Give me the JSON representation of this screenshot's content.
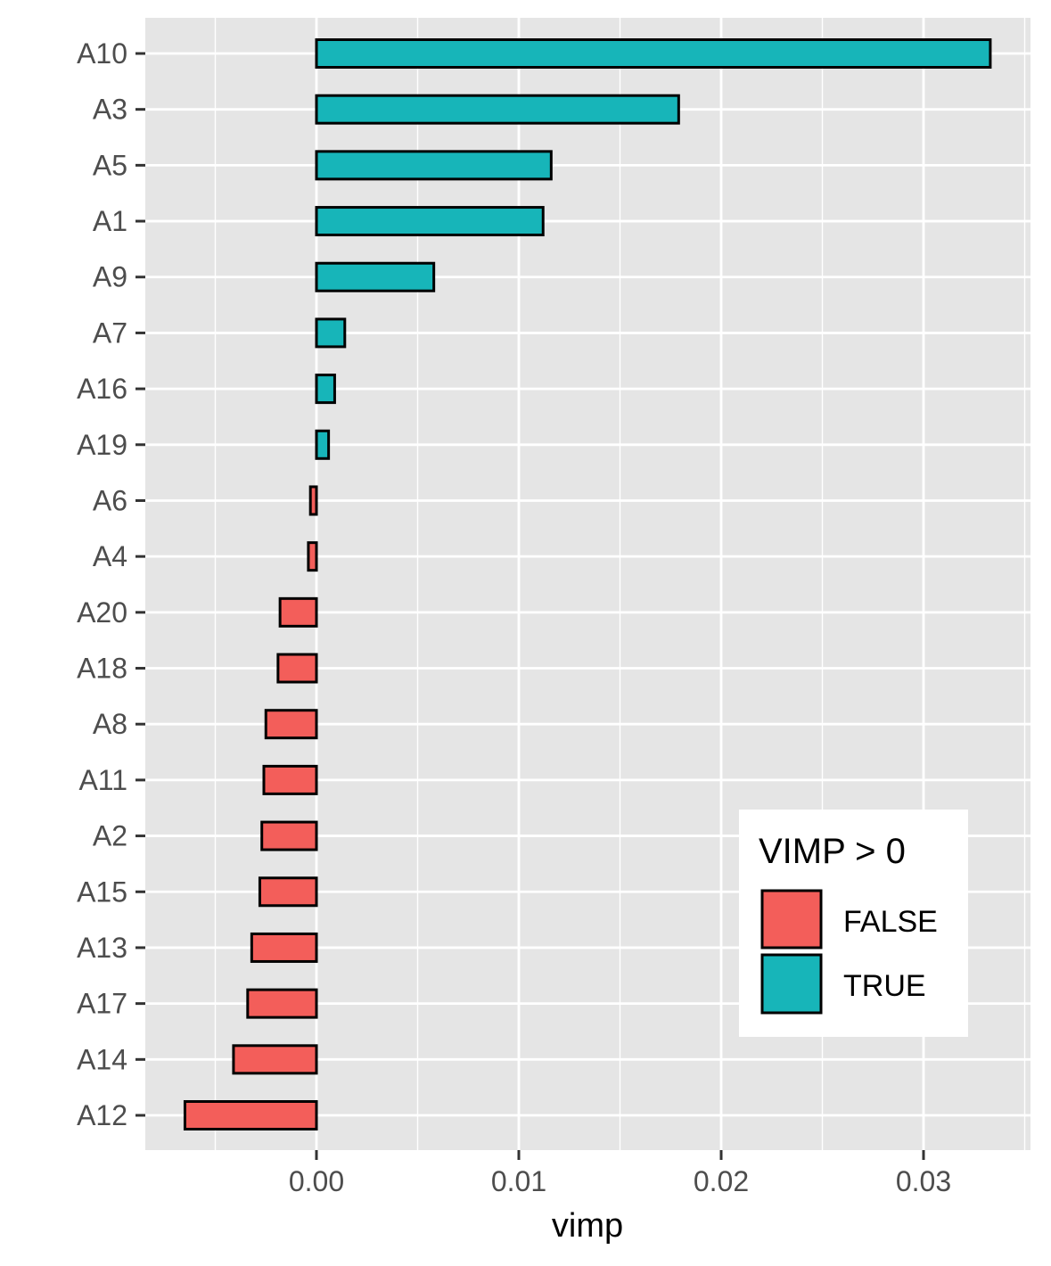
{
  "chart_data": {
    "type": "bar",
    "orientation": "horizontal",
    "categories": [
      "A10",
      "A3",
      "A5",
      "A1",
      "A9",
      "A7",
      "A16",
      "A19",
      "A6",
      "A4",
      "A20",
      "A18",
      "A8",
      "A11",
      "A2",
      "A15",
      "A13",
      "A17",
      "A14",
      "A12"
    ],
    "values": [
      0.0333,
      0.0179,
      0.0116,
      0.0112,
      0.0058,
      0.0014,
      0.0009,
      0.0006,
      -0.0003,
      -0.0004,
      -0.0018,
      -0.0019,
      -0.0025,
      -0.0026,
      -0.0027,
      -0.0028,
      -0.0032,
      -0.0034,
      -0.0041,
      -0.0065
    ],
    "xlabel": "vimp",
    "ylabel": "",
    "xlim": [
      -0.0084,
      0.0352
    ],
    "x_ticks": [
      0.0,
      0.01,
      0.02,
      0.03
    ],
    "x_tick_labels": [
      "0.00",
      "0.01",
      "0.02",
      "0.03"
    ],
    "grid": true,
    "legend": {
      "title": "VIMP > 0",
      "position": "bottom-right-inside",
      "entries": [
        {
          "label": "FALSE",
          "color": "#F8766D"
        },
        {
          "label": "TRUE",
          "color": "#00BFC4"
        }
      ]
    },
    "colors": {
      "panel_bg": "#E5E5E5",
      "grid": "#FFFFFF",
      "bar_outline": "#000000",
      "false": "#F35E5A",
      "true": "#17B5B9"
    }
  }
}
